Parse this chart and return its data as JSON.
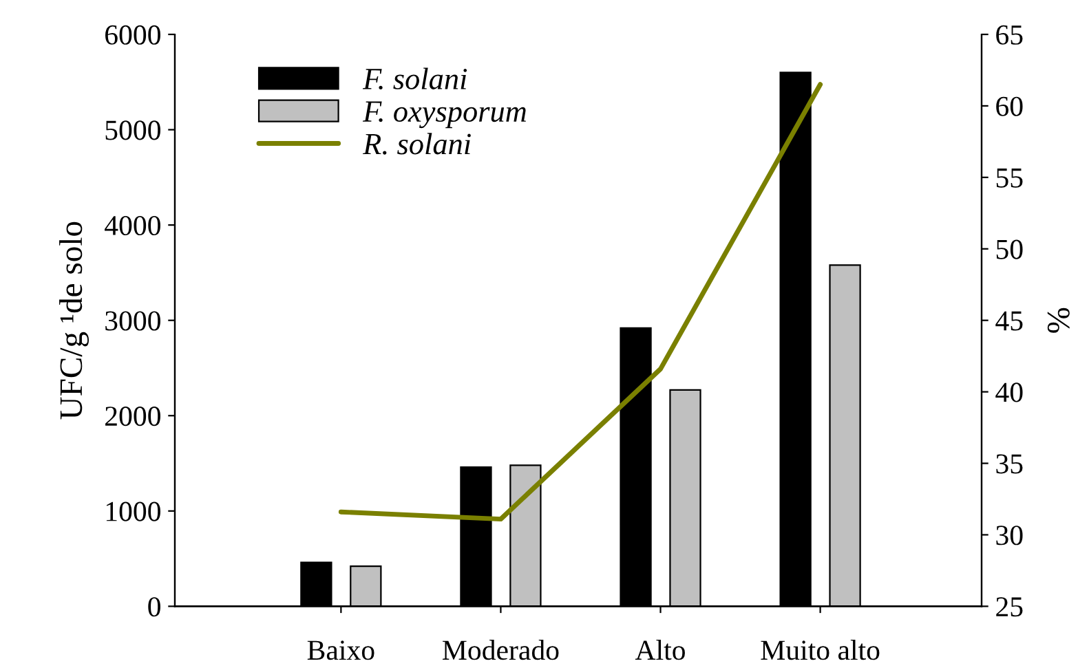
{
  "chart_data": {
    "type": "bar",
    "categories": [
      "Baixo",
      "Moderado",
      "Alto",
      "Muito alto"
    ],
    "ylabel": "UFC/g ¹de solo",
    "y2label": "%",
    "ylim": [
      0,
      6000
    ],
    "yticks": [
      0,
      1000,
      2000,
      3000,
      4000,
      5000,
      6000
    ],
    "y2lim": [
      25,
      65
    ],
    "y2ticks": [
      25,
      30,
      35,
      40,
      45,
      50,
      55,
      60,
      65
    ],
    "series": [
      {
        "name": "F. solani",
        "color": "#000000",
        "values": [
          460,
          1460,
          2920,
          5600
        ]
      },
      {
        "name": "F. oxysporum",
        "color": "#c0c0c0",
        "values": [
          420,
          1480,
          2270,
          3580
        ]
      },
      {
        "name": "R. solani",
        "type": "line",
        "axis": "y2",
        "color": "#7a8000",
        "values": [
          31.6,
          31.1,
          41.6,
          61.5
        ]
      }
    ],
    "legend": "top left",
    "grid": false
  }
}
